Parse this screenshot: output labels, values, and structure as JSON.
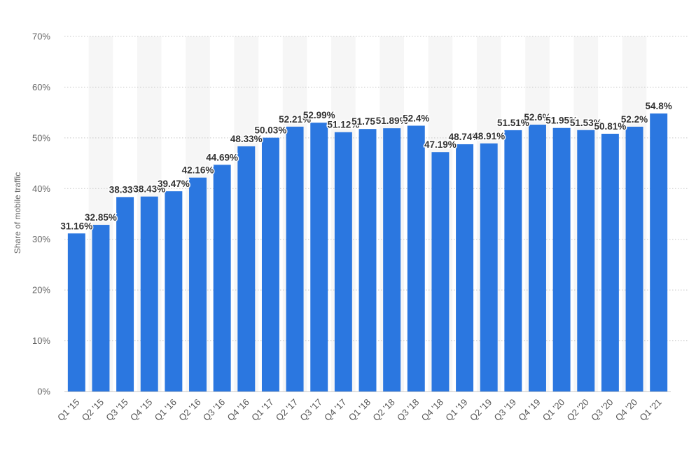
{
  "chart_data": {
    "type": "bar",
    "categories": [
      "Q1 '15",
      "Q2 '15",
      "Q3 '15",
      "Q4 '15",
      "Q1 '16",
      "Q2 '16",
      "Q3 '16",
      "Q4 '16",
      "Q1 '17",
      "Q2 '17",
      "Q3 '17",
      "Q4 '17",
      "Q1 '18",
      "Q2 '18",
      "Q3 '18",
      "Q4 '18",
      "Q1 '19",
      "Q2 '19",
      "Q3 '19",
      "Q4 '19",
      "Q1 '20",
      "Q2 '20",
      "Q3 '20",
      "Q4 '20",
      "Q1 '21"
    ],
    "values": [
      31.16,
      32.85,
      38.33,
      38.43,
      39.47,
      42.16,
      44.69,
      48.33,
      50.03,
      52.21,
      52.99,
      51.12,
      51.75,
      51.89,
      52.4,
      47.19,
      48.74,
      48.91,
      51.51,
      52.6,
      51.95,
      51.53,
      50.81,
      52.2,
      54.8
    ],
    "data_labels": [
      "31.16%",
      "32.85%",
      "38.33%",
      "38.43%",
      "39.47%",
      "42.16%",
      "44.69%",
      "48.33%",
      "50.03%",
      "52.21%",
      "52.99%",
      "51.12%",
      "51.75%",
      "51.89%",
      "52.4%",
      "47.19%",
      "48.74%",
      "48.91%",
      "51.51%",
      "52.6%",
      "51.95%",
      "51.53%",
      "50.81%",
      "52.2%",
      "54.8%"
    ],
    "ylabel": "Share of mobile traffic",
    "xlabel": "",
    "ylim": [
      0,
      70
    ],
    "yticks": [
      "0%",
      "10%",
      "20%",
      "30%",
      "40%",
      "50%",
      "60%",
      "70%"
    ],
    "ytick_values": [
      0,
      10,
      20,
      30,
      40,
      50,
      60,
      70
    ],
    "grid": true,
    "legend": "none",
    "bar_color": "#2b77e0",
    "band_color": "#f6f6f6"
  }
}
